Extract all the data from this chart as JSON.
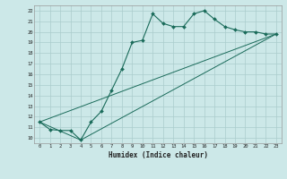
{
  "xlabel": "Humidex (Indice chaleur)",
  "bg_color": "#cce8e8",
  "line_color": "#1a6b5a",
  "grid_color": "#aacccc",
  "xlim": [
    -0.5,
    23.5
  ],
  "ylim": [
    9.5,
    22.5
  ],
  "xticks": [
    0,
    1,
    2,
    3,
    4,
    5,
    6,
    7,
    8,
    9,
    10,
    11,
    12,
    13,
    14,
    15,
    16,
    17,
    18,
    19,
    20,
    21,
    22,
    23
  ],
  "yticks": [
    10,
    11,
    12,
    13,
    14,
    15,
    16,
    17,
    18,
    19,
    20,
    21,
    22
  ],
  "line1_x": [
    0,
    1,
    2,
    3,
    4,
    5,
    6,
    7,
    8,
    9,
    10,
    11,
    12,
    13,
    14,
    15,
    16,
    17,
    18,
    19,
    20,
    21,
    22,
    23
  ],
  "line1_y": [
    11.5,
    10.8,
    10.7,
    10.7,
    9.8,
    11.5,
    12.5,
    14.5,
    16.5,
    19.0,
    19.2,
    21.7,
    20.8,
    20.5,
    20.5,
    21.7,
    22.0,
    21.2,
    20.5,
    20.2,
    20.0,
    20.0,
    19.8,
    19.8
  ],
  "line2_x": [
    0,
    4,
    23
  ],
  "line2_y": [
    11.5,
    9.8,
    19.8
  ],
  "line3_x": [
    0,
    4,
    23
  ],
  "line3_y": [
    11.5,
    9.8,
    19.8
  ]
}
